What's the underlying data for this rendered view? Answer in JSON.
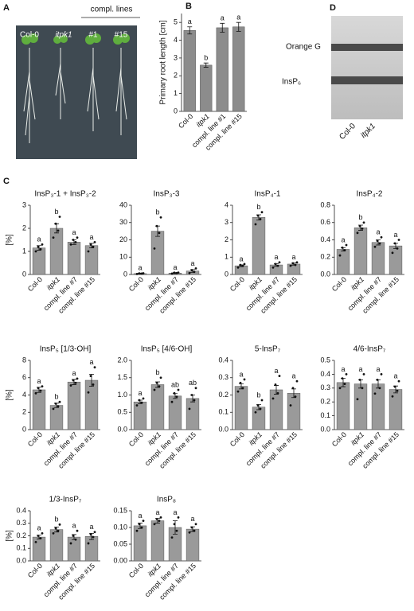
{
  "panel_a": {
    "letter": "A",
    "labels": [
      "Col-0",
      "itpk1",
      "#1",
      "#15"
    ],
    "group_label": "compl. lines"
  },
  "panel_c": {
    "letter": "C"
  },
  "panel_d": {
    "letter": "D",
    "bands": [
      "Orange G",
      "InsP₆"
    ],
    "lanes": [
      "Col-0",
      "itpk1"
    ]
  },
  "chart_data": [
    {
      "type": "bar",
      "panel": "B",
      "y_label": "Primary root length [cm]",
      "color": "#8c8c8c",
      "categories": [
        "Col-0",
        "itpk1",
        "compl. line #1",
        "compl. line #15"
      ],
      "values": [
        4.55,
        2.6,
        4.7,
        4.75
      ],
      "errors": [
        0.2,
        0.12,
        0.25,
        0.25
      ],
      "letters": [
        "a",
        "b",
        "a",
        "a"
      ],
      "ylim": [
        0,
        5.5
      ],
      "yticks": [
        0,
        1,
        2,
        3,
        4,
        5
      ]
    },
    {
      "type": "bar",
      "title": "InsP₃-1 + InsP₃-2",
      "y_label": "[%]",
      "color": "#9a9a9a",
      "categories": [
        "Col-0",
        "itpk1",
        "compl. line #7",
        "compl. line #15"
      ],
      "values": [
        1.15,
        2.0,
        1.4,
        1.25
      ],
      "errors": [
        0.1,
        0.2,
        0.1,
        0.1
      ],
      "letters": [
        "a",
        "b",
        "a",
        "a"
      ],
      "points": [
        [
          1.0,
          1.1,
          1.2,
          1.3
        ],
        [
          1.6,
          1.9,
          2.2,
          2.5
        ],
        [
          1.3,
          1.4,
          1.5,
          1.6
        ],
        [
          1.0,
          1.2,
          1.3,
          1.4
        ]
      ],
      "ylim": [
        0,
        3
      ],
      "yticks": [
        0,
        1,
        2,
        3
      ]
    },
    {
      "type": "bar",
      "title": "InsP₃-3",
      "color": "#9a9a9a",
      "categories": [
        "Col-0",
        "itpk1",
        "compl. line #7",
        "compl. line #15"
      ],
      "values": [
        0.5,
        25,
        0.8,
        2
      ],
      "errors": [
        0.3,
        3,
        0.3,
        0.8
      ],
      "letters": [
        "a",
        "b",
        "a",
        "a"
      ],
      "points": [
        [
          0.3,
          0.5,
          0.6,
          0.7
        ],
        [
          15,
          24,
          28,
          33
        ],
        [
          0.5,
          0.8,
          1.0,
          1.1
        ],
        [
          0.8,
          1.5,
          2.5,
          3.5
        ]
      ],
      "ylim": [
        0,
        40
      ],
      "yticks": [
        0,
        10,
        20,
        30,
        40
      ]
    },
    {
      "type": "bar",
      "title": "InsP₄-1",
      "color": "#9a9a9a",
      "categories": [
        "Col-0",
        "itpk1",
        "compl. line #7",
        "compl. line #15"
      ],
      "values": [
        0.5,
        3.3,
        0.55,
        0.6
      ],
      "errors": [
        0.05,
        0.15,
        0.08,
        0.06
      ],
      "letters": [
        "a",
        "b",
        "a",
        "a"
      ],
      "points": [
        [
          0.4,
          0.5,
          0.55,
          0.6
        ],
        [
          2.9,
          3.2,
          3.4,
          3.6
        ],
        [
          0.4,
          0.5,
          0.6,
          0.7
        ],
        [
          0.5,
          0.55,
          0.65,
          0.7
        ]
      ],
      "ylim": [
        0,
        4
      ],
      "yticks": [
        0,
        1,
        2,
        3,
        4
      ]
    },
    {
      "type": "bar",
      "title": "InsP₄-2",
      "color": "#9a9a9a",
      "categories": [
        "Col-0",
        "itpk1",
        "compl. line #7",
        "compl. line #15"
      ],
      "values": [
        0.29,
        0.54,
        0.37,
        0.33
      ],
      "errors": [
        0.02,
        0.03,
        0.03,
        0.03
      ],
      "letters": [
        "a",
        "b",
        "a",
        "a"
      ],
      "points": [
        [
          0.22,
          0.28,
          0.31,
          0.34
        ],
        [
          0.48,
          0.53,
          0.56,
          0.6
        ],
        [
          0.32,
          0.36,
          0.39,
          0.43
        ],
        [
          0.25,
          0.3,
          0.36,
          0.4
        ]
      ],
      "ylim": [
        0,
        0.8
      ],
      "yticks": [
        {
          "value": 0,
          "label": "0.0"
        },
        0.2,
        0.4,
        0.6,
        0.8
      ]
    },
    {
      "type": "bar",
      "title": "InsP₅ [1/3-OH]",
      "y_label": "[%]",
      "color": "#9a9a9a",
      "categories": [
        "Col-0",
        "itpk1",
        "compl. line #7",
        "compl. line #15"
      ],
      "values": [
        4.6,
        2.8,
        5.5,
        5.7
      ],
      "errors": [
        0.3,
        0.25,
        0.3,
        0.7
      ],
      "letters": [
        "a",
        "b",
        "a",
        "a"
      ],
      "points": [
        [
          4.2,
          4.5,
          4.8,
          5.0
        ],
        [
          2.4,
          2.7,
          3.0,
          3.2
        ],
        [
          5.1,
          5.4,
          5.7,
          5.9
        ],
        [
          4.3,
          5.2,
          6.2,
          7.2
        ]
      ],
      "ylim": [
        0,
        8
      ],
      "yticks": [
        0,
        2,
        4,
        6,
        8
      ]
    },
    {
      "type": "bar",
      "title": "InsP₅ [4/6-OH]",
      "color": "#9a9a9a",
      "categories": [
        "Col-0",
        "itpk1",
        "compl. line #7",
        "compl. line #15"
      ],
      "values": [
        0.8,
        1.3,
        0.97,
        0.9
      ],
      "errors": [
        0.05,
        0.08,
        0.07,
        0.1
      ],
      "letters": [
        "a",
        "b",
        "ab",
        "ab"
      ],
      "points": [
        [
          0.7,
          0.78,
          0.85,
          0.9
        ],
        [
          1.15,
          1.25,
          1.35,
          1.5
        ],
        [
          0.8,
          0.95,
          1.05,
          1.15
        ],
        [
          0.6,
          0.85,
          1.0,
          1.2
        ]
      ],
      "ylim": [
        0,
        2
      ],
      "yticks": [
        {
          "value": 0,
          "label": "0.0"
        },
        0.5,
        {
          "value": 1,
          "label": "1.0"
        },
        1.5,
        {
          "value": 2,
          "label": "2.0"
        }
      ]
    },
    {
      "type": "bar",
      "title": "5-InsP₇",
      "color": "#9a9a9a",
      "categories": [
        "Col-0",
        "itpk1",
        "compl. line #7",
        "compl. line #15"
      ],
      "values": [
        0.25,
        0.13,
        0.23,
        0.21
      ],
      "errors": [
        0.015,
        0.015,
        0.025,
        0.025
      ],
      "letters": [
        "a",
        "b",
        "a",
        "a"
      ],
      "points": [
        [
          0.22,
          0.24,
          0.27,
          0.29
        ],
        [
          0.1,
          0.12,
          0.14,
          0.17
        ],
        [
          0.18,
          0.21,
          0.26,
          0.31
        ],
        [
          0.14,
          0.19,
          0.24,
          0.28
        ]
      ],
      "ylim": [
        0,
        0.4
      ],
      "yticks": [
        {
          "value": 0,
          "label": "0.0"
        },
        0.1,
        0.2,
        0.3,
        0.4
      ]
    },
    {
      "type": "bar",
      "title": "4/6-InsP₇",
      "color": "#9a9a9a",
      "categories": [
        "Col-0",
        "itpk1",
        "compl. line #7",
        "compl. line #15"
      ],
      "values": [
        0.34,
        0.33,
        0.33,
        0.29
      ],
      "errors": [
        0.03,
        0.03,
        0.03,
        0.025
      ],
      "letters": [
        "a",
        "a",
        "a",
        "a"
      ],
      "points": [
        [
          0.3,
          0.33,
          0.37,
          0.4
        ],
        [
          0.22,
          0.3,
          0.36,
          0.4
        ],
        [
          0.26,
          0.3,
          0.36,
          0.4
        ],
        [
          0.24,
          0.28,
          0.31,
          0.35
        ]
      ],
      "ylim": [
        0,
        0.5
      ],
      "yticks": [
        {
          "value": 0,
          "label": "0.0"
        },
        0.1,
        0.2,
        0.3,
        0.4,
        0.5
      ]
    },
    {
      "type": "bar",
      "title": "1/3-InsP₇",
      "y_label": "[%]",
      "color": "#9a9a9a",
      "categories": [
        "Col-0",
        "itpk1",
        "compl. line #7",
        "compl. line #15"
      ],
      "values": [
        0.19,
        0.25,
        0.19,
        0.195
      ],
      "errors": [
        0.015,
        0.02,
        0.02,
        0.025
      ],
      "letters": [
        "a",
        "b",
        "a",
        "a"
      ],
      "points": [
        [
          0.15,
          0.18,
          0.2,
          0.22
        ],
        [
          0.22,
          0.24,
          0.26,
          0.29
        ],
        [
          0.14,
          0.17,
          0.2,
          0.24
        ],
        [
          0.14,
          0.19,
          0.21,
          0.23
        ]
      ],
      "ylim": [
        0,
        0.4
      ],
      "yticks": [
        {
          "value": 0,
          "label": "0.0"
        },
        0.1,
        0.2,
        0.3,
        0.4
      ]
    },
    {
      "type": "bar",
      "title": "InsP₈",
      "color": "#9a9a9a",
      "categories": [
        "Col-0",
        "itpk1",
        "compl. line #7",
        "compl. line #15"
      ],
      "values": [
        0.105,
        0.12,
        0.1,
        0.095
      ],
      "errors": [
        0.008,
        0.007,
        0.02,
        0.007
      ],
      "letters": [
        "a",
        "a",
        "a",
        "a"
      ],
      "points": [
        [
          0.09,
          0.1,
          0.11,
          0.12
        ],
        [
          0.11,
          0.12,
          0.125,
          0.13
        ],
        [
          0.07,
          0.09,
          0.11,
          0.13
        ],
        [
          0.085,
          0.09,
          0.1,
          0.11
        ]
      ],
      "ylim": [
        0,
        0.15
      ],
      "yticks": [
        {
          "value": 0,
          "label": "0.00"
        },
        0.05,
        {
          "value": 0.1,
          "label": "0.10"
        },
        0.15
      ]
    }
  ]
}
